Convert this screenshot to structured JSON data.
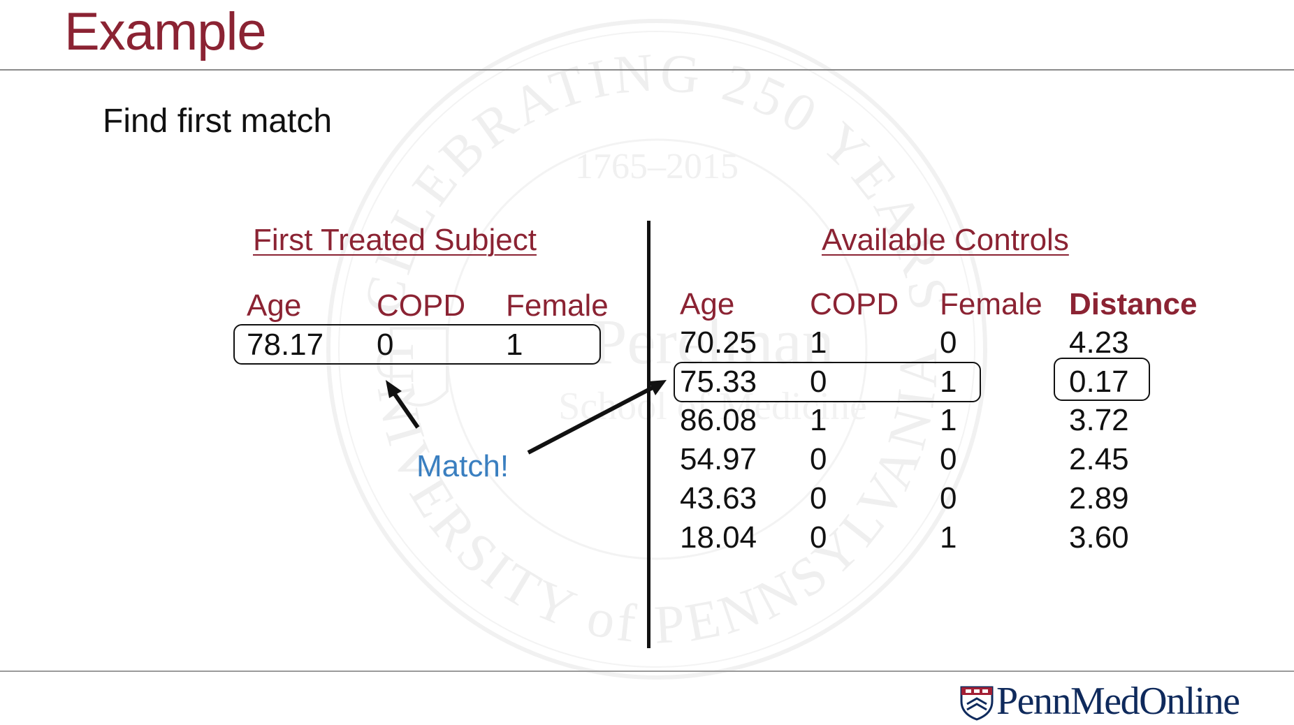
{
  "slide": {
    "title": "Example",
    "subtitle": "Find first match"
  },
  "treated": {
    "heading": "First Treated Subject",
    "columns": [
      "Age",
      "COPD",
      "Female"
    ],
    "row": [
      "78.17",
      "0",
      "1"
    ]
  },
  "controls": {
    "heading": "Available Controls",
    "columns": [
      "Age",
      "COPD",
      "Female",
      "Distance"
    ],
    "rows": [
      [
        "70.25",
        "1",
        "0",
        "4.23"
      ],
      [
        "75.33",
        "0",
        "1",
        "0.17"
      ],
      [
        "86.08",
        "1",
        "1",
        "3.72"
      ],
      [
        "54.97",
        "0",
        "0",
        "2.45"
      ],
      [
        "43.63",
        "0",
        "0",
        "2.89"
      ],
      [
        "18.04",
        "0",
        "1",
        "3.60"
      ]
    ],
    "matched_row_index": 1
  },
  "annotation": {
    "match_label": "Match!"
  },
  "watermark": {
    "top_text": "CELEBRATING 250 YEARS",
    "years": "1765–2015",
    "bottom_text": "UNIVERSITY of PENNSYLVANIA",
    "center_line1": "Perelman",
    "center_line2": "School of Medicine"
  },
  "footer": {
    "logo_text": "PennMedOnline"
  },
  "colors": {
    "accent": "#8b2333",
    "match": "#3a7fc0",
    "logo": "#0f2a5c"
  }
}
